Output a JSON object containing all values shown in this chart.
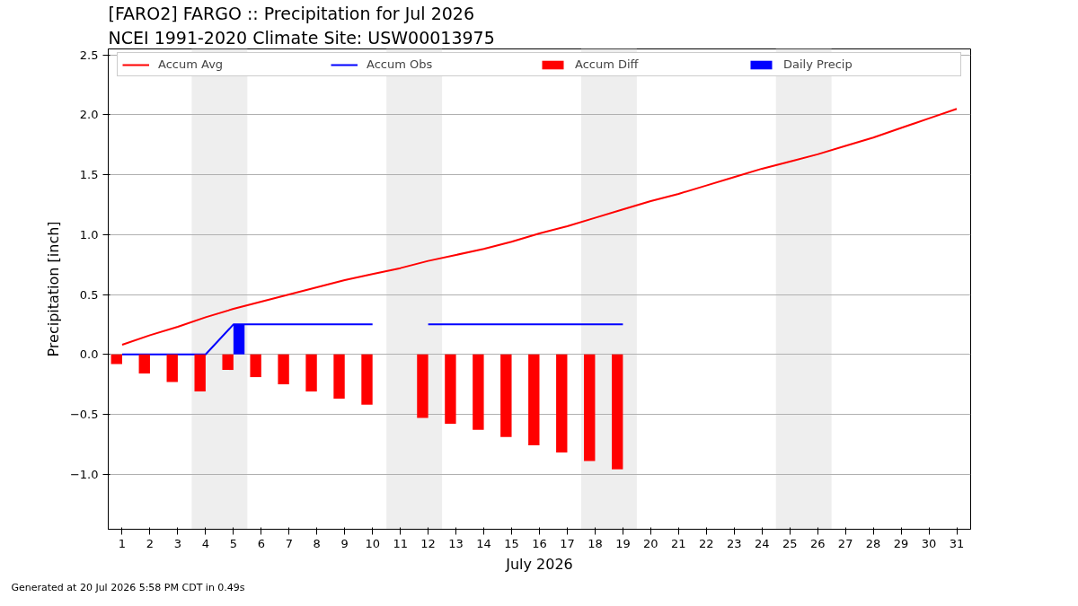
{
  "chart_data": {
    "type": "line",
    "title": "[FARO2] FARGO :: Precipitation for Jul 2026",
    "subtitle": "NCEI 1991-2020 Climate Site: USW00013975",
    "xlabel": "July 2026",
    "ylabel": "Precipitation [inch]",
    "x": [
      1,
      2,
      3,
      4,
      5,
      6,
      7,
      8,
      9,
      10,
      11,
      12,
      13,
      14,
      15,
      16,
      17,
      18,
      19,
      20,
      21,
      22,
      23,
      24,
      25,
      26,
      27,
      28,
      29,
      30,
      31
    ],
    "xlim": [
      0.5,
      31.5
    ],
    "xticks": [
      1,
      2,
      3,
      4,
      5,
      6,
      7,
      8,
      9,
      10,
      11,
      12,
      13,
      14,
      15,
      16,
      17,
      18,
      19,
      20,
      21,
      22,
      23,
      24,
      25,
      26,
      27,
      28,
      29,
      30,
      31
    ],
    "ylim": [
      -1.46,
      2.55
    ],
    "yticks": [
      {
        "value": -1.0,
        "label": "−1.0"
      },
      {
        "value": -0.5,
        "label": "−0.5"
      },
      {
        "value": 0,
        "label": "0.0"
      },
      0.5,
      {
        "value": 1.0,
        "label": "1.0"
      },
      1.5,
      {
        "value": 2.0,
        "label": "2.0"
      },
      2.5
    ],
    "grid": "y",
    "legend": "top",
    "bands": [
      {
        "axis": "x",
        "from": 3.5,
        "to": 5.5,
        "color": "#eeeeee"
      },
      {
        "axis": "x",
        "from": 10.5,
        "to": 12.5,
        "color": "#eeeeee"
      },
      {
        "axis": "x",
        "from": 17.5,
        "to": 19.5,
        "color": "#eeeeee"
      },
      {
        "axis": "x",
        "from": 24.5,
        "to": 26.5,
        "color": "#eeeeee"
      }
    ],
    "series": [
      {
        "name": "Accum Avg",
        "color": "#ff0000",
        "values": [
          0.08,
          0.16,
          0.23,
          0.31,
          0.38,
          0.44,
          0.5,
          0.56,
          0.62,
          0.67,
          0.72,
          0.78,
          0.83,
          0.88,
          0.94,
          1.01,
          1.07,
          1.14,
          1.21,
          1.28,
          1.34,
          1.41,
          1.48,
          1.55,
          1.61,
          1.67,
          1.74,
          1.81,
          1.89,
          1.97,
          2.05
        ]
      },
      {
        "name": "Accum Obs",
        "color": "#0000ff",
        "values": [
          0,
          0,
          0,
          0,
          0.25,
          0.25,
          0.25,
          0.25,
          0.25,
          0.25,
          null,
          0.25,
          0.25,
          0.25,
          0.25,
          0.25,
          0.25,
          0.25,
          0.25,
          null,
          null,
          null,
          null,
          null,
          null,
          null,
          null,
          null,
          null,
          null,
          null
        ]
      },
      {
        "name": "Accum Diff",
        "type": "bar",
        "color": "#ff0000",
        "values": [
          -0.08,
          -0.16,
          -0.23,
          -0.31,
          -0.13,
          -0.19,
          -0.25,
          -0.31,
          -0.37,
          -0.42,
          null,
          -0.53,
          -0.58,
          -0.63,
          -0.69,
          -0.76,
          -0.82,
          -0.89,
          -0.96,
          null,
          null,
          null,
          null,
          null,
          null,
          null,
          null,
          null,
          null,
          null,
          null
        ]
      },
      {
        "name": "Daily Precip",
        "type": "bar",
        "color": "#0000ff",
        "values": [
          null,
          null,
          null,
          null,
          0.25,
          null,
          null,
          null,
          null,
          null,
          null,
          null,
          null,
          null,
          null,
          null,
          null,
          null,
          null,
          null,
          null,
          null,
          null,
          null,
          null,
          null,
          null,
          null,
          null,
          null,
          null
        ]
      }
    ],
    "annotations": [
      "Generated at 20 Jul 2026 5:58 PM CDT in 0.49s"
    ]
  }
}
